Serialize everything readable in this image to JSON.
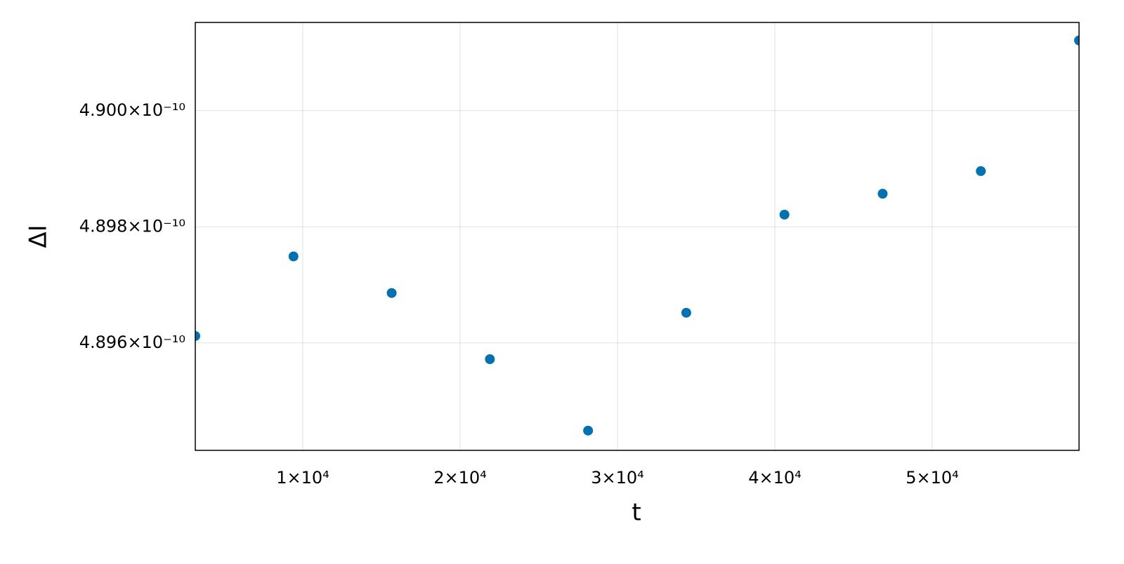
{
  "chart_data": {
    "type": "scatter",
    "x_label": "t",
    "y_label": "ΔI",
    "x": [
      3170,
      9410,
      15650,
      21890,
      28130,
      34370,
      40610,
      46850,
      53090,
      59330
    ],
    "series": [
      {
        "color": "#0072b2",
        "values": [
          4.89612e-10,
          4.89749e-10,
          4.89686e-10,
          4.89572e-10,
          4.89449e-10,
          4.89652e-10,
          4.89821e-10,
          4.89857e-10,
          4.89896e-10,
          4.90121e-10
        ]
      }
    ],
    "xlim": [
      3170,
      59330
    ],
    "xticks": [
      {
        "value": 10000,
        "label": "1×10⁴"
      },
      {
        "value": 20000,
        "label": "2×10⁴"
      },
      {
        "value": 30000,
        "label": "3×10⁴"
      },
      {
        "value": 40000,
        "label": "4×10⁴"
      },
      {
        "value": 50000,
        "label": "5×10⁴"
      }
    ],
    "ylim": [
      4.89415e-10,
      4.90152e-10
    ],
    "yticks": [
      {
        "value": 4.896e-10,
        "label": "4.896×10⁻¹⁰"
      },
      {
        "value": 4.898e-10,
        "label": "4.898×10⁻¹⁰"
      },
      {
        "value": 4.9e-10,
        "label": "4.900×10⁻¹⁰"
      }
    ],
    "grid": true
  }
}
